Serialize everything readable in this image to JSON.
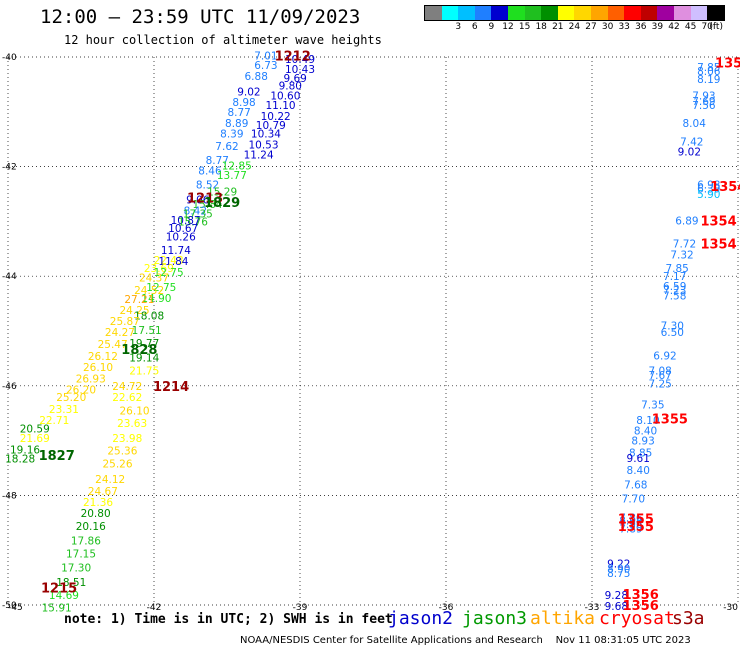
{
  "header": {
    "title": "12:00 — 23:59 UTC 11/09/2023",
    "subtitle": "12 hour collection of altimeter wave heights"
  },
  "colorbar": {
    "unit_label": "(ft)",
    "cells": [
      {
        "color": "#7f7f7f",
        "label": ""
      },
      {
        "color": "#00ffff",
        "label": "3"
      },
      {
        "color": "#00bfff",
        "label": "6"
      },
      {
        "color": "#1f7fff",
        "label": "9"
      },
      {
        "color": "#0000cf",
        "label": "12"
      },
      {
        "color": "#1fdf1f",
        "label": "15"
      },
      {
        "color": "#1fbf1f",
        "label": "18"
      },
      {
        "color": "#008f00",
        "label": "21"
      },
      {
        "color": "#ffff00",
        "label": "24"
      },
      {
        "color": "#ffd700",
        "label": "27"
      },
      {
        "color": "#ffa500",
        "label": "30"
      },
      {
        "color": "#ff5f00",
        "label": "33"
      },
      {
        "color": "#ff0000",
        "label": "36"
      },
      {
        "color": "#bf0000",
        "label": "39"
      },
      {
        "color": "#9f009f",
        "label": "42"
      },
      {
        "color": "#df8fdf",
        "label": "45"
      },
      {
        "color": "#cfbfff",
        "label": "70"
      },
      {
        "color": "#000000",
        "label": ""
      }
    ]
  },
  "footer": {
    "note": "note: 1) Time is in UTC; 2) SWH is in feet",
    "satellites": [
      {
        "name": "jason2",
        "color": "#0000cc"
      },
      {
        "name": "jason3",
        "color": "#009900"
      },
      {
        "name": "altika",
        "color": "#ffa500"
      },
      {
        "name": "cryosat",
        "color": "#ff0000"
      },
      {
        "name": "s3a",
        "color": "#990000"
      }
    ],
    "credit": "NOAA/NESDIS Center for Satellite Applications and Research    Nov 11 08:31:05 UTC 2023"
  },
  "chart_data": {
    "type": "scatter",
    "title": "12:00 — 23:59 UTC 11/09/2023",
    "subtitle": "12 hour collection of altimeter wave heights",
    "xlim": [
      -45,
      -30
    ],
    "ylim": [
      -50,
      -40
    ],
    "x_ticks": [
      {
        "value": -45,
        "label": "-45"
      },
      {
        "value": -42,
        "label": "-42"
      },
      {
        "value": -39,
        "label": "-39"
      },
      {
        "value": -36,
        "label": "-36"
      },
      {
        "value": -33,
        "label": "-33"
      },
      {
        "value": -30,
        "label": "-30"
      }
    ],
    "y_ticks": [
      {
        "value": -40,
        "label": "-40"
      },
      {
        "value": -42,
        "label": "-42"
      },
      {
        "value": -44,
        "label": "-44"
      },
      {
        "value": -46,
        "label": "-46"
      },
      {
        "value": -48,
        "label": "-48"
      },
      {
        "value": -50,
        "label": "-50"
      }
    ],
    "grid": true,
    "time_labels": [
      {
        "text": "1212",
        "x": -39.15,
        "y": -39.97,
        "color": "#990000"
      },
      {
        "text": "1213",
        "x": -40.95,
        "y": -42.56,
        "color": "#990000"
      },
      {
        "text": "1829",
        "x": -40.6,
        "y": -42.65,
        "color": "#006600"
      },
      {
        "text": "1828",
        "x": -42.3,
        "y": -45.33,
        "color": "#006600"
      },
      {
        "text": "1214",
        "x": -41.65,
        "y": -46.0,
        "color": "#990000"
      },
      {
        "text": "1827",
        "x": -44.0,
        "y": -47.26,
        "color": "#006600"
      },
      {
        "text": "1215",
        "x": -43.95,
        "y": -49.68,
        "color": "#990000"
      },
      {
        "text": "1354",
        "x": -30.1,
        "y": -40.1,
        "color": "#ff0000"
      },
      {
        "text": "1354",
        "x": -30.2,
        "y": -42.35,
        "color": "#ff0000"
      },
      {
        "text": "1354",
        "x": -30.4,
        "y": -42.98,
        "color": "#ff0000"
      },
      {
        "text": "1354",
        "x": -30.4,
        "y": -43.4,
        "color": "#ff0000"
      },
      {
        "text": "1355",
        "x": -31.4,
        "y": -46.6,
        "color": "#ff0000"
      },
      {
        "text": "1355",
        "x": -32.1,
        "y": -48.42,
        "color": "#ff0000"
      },
      {
        "text": "1355",
        "x": -32.1,
        "y": -48.56,
        "color": "#ff0000"
      },
      {
        "text": "1356",
        "x": -32.0,
        "y": -49.8,
        "color": "#ff0000"
      },
      {
        "text": "1356",
        "x": -32.0,
        "y": -50.0,
        "color": "#ff0000"
      }
    ],
    "points": [
      {
        "x": -39.7,
        "y": -39.97,
        "v": "7.01"
      },
      {
        "x": -39.0,
        "y": -40.04,
        "v": "10.49"
      },
      {
        "x": -39.7,
        "y": -40.15,
        "v": "6.73"
      },
      {
        "x": -39.0,
        "y": -40.22,
        "v": "10.43"
      },
      {
        "x": -39.9,
        "y": -40.35,
        "v": "6.88"
      },
      {
        "x": -39.1,
        "y": -40.38,
        "v": "9.69"
      },
      {
        "x": -39.2,
        "y": -40.52,
        "v": "9.80"
      },
      {
        "x": -40.05,
        "y": -40.63,
        "v": "9.02"
      },
      {
        "x": -39.3,
        "y": -40.7,
        "v": "10.60"
      },
      {
        "x": -40.15,
        "y": -40.82,
        "v": "8.98"
      },
      {
        "x": -39.4,
        "y": -40.88,
        "v": "11.10"
      },
      {
        "x": -40.25,
        "y": -41.0,
        "v": "8.77"
      },
      {
        "x": -39.5,
        "y": -41.08,
        "v": "10.22"
      },
      {
        "x": -40.3,
        "y": -41.2,
        "v": "8.89"
      },
      {
        "x": -39.6,
        "y": -41.24,
        "v": "10.79"
      },
      {
        "x": -40.4,
        "y": -41.4,
        "v": "8.39"
      },
      {
        "x": -39.7,
        "y": -41.4,
        "v": "10.34"
      },
      {
        "x": -39.75,
        "y": -41.6,
        "v": "10.53"
      },
      {
        "x": -40.5,
        "y": -41.62,
        "v": "7.62"
      },
      {
        "x": -39.85,
        "y": -41.78,
        "v": "11.24"
      },
      {
        "x": -40.7,
        "y": -41.88,
        "v": "8.77"
      },
      {
        "x": -40.3,
        "y": -41.98,
        "v": "12.85"
      },
      {
        "x": -40.85,
        "y": -42.07,
        "v": "8.46"
      },
      {
        "x": -40.4,
        "y": -42.15,
        "v": "13.77"
      },
      {
        "x": -40.9,
        "y": -42.33,
        "v": "8.52"
      },
      {
        "x": -40.6,
        "y": -42.45,
        "v": "15.29"
      },
      {
        "x": -41.1,
        "y": -42.6,
        "v": "9.06"
      },
      {
        "x": -40.9,
        "y": -42.68,
        "v": "15.84"
      },
      {
        "x": -41.15,
        "y": -42.8,
        "v": "8.42"
      },
      {
        "x": -41.1,
        "y": -42.86,
        "v": "17.35"
      },
      {
        "x": -41.35,
        "y": -42.97,
        "v": "10.87"
      },
      {
        "x": -41.2,
        "y": -43.0,
        "v": "15.76"
      },
      {
        "x": -41.4,
        "y": -43.12,
        "v": "10.67"
      },
      {
        "x": -41.45,
        "y": -43.28,
        "v": "10.26"
      },
      {
        "x": -41.55,
        "y": -43.52,
        "v": "11.74"
      },
      {
        "x": -41.7,
        "y": -43.7,
        "v": "22.43"
      },
      {
        "x": -41.6,
        "y": -43.72,
        "v": "11.84"
      },
      {
        "x": -41.9,
        "y": -43.85,
        "v": "23.69"
      },
      {
        "x": -41.7,
        "y": -43.92,
        "v": "12.75"
      },
      {
        "x": -42.0,
        "y": -44.02,
        "v": "24.37"
      },
      {
        "x": -41.85,
        "y": -44.2,
        "v": "12.75"
      },
      {
        "x": -42.1,
        "y": -44.25,
        "v": "24.52"
      },
      {
        "x": -41.95,
        "y": -44.4,
        "v": "14.90"
      },
      {
        "x": -42.3,
        "y": -44.42,
        "v": "27.21"
      },
      {
        "x": -42.4,
        "y": -44.62,
        "v": "24.25"
      },
      {
        "x": -42.1,
        "y": -44.72,
        "v": "18.08"
      },
      {
        "x": -42.6,
        "y": -44.82,
        "v": "25.87"
      },
      {
        "x": -42.15,
        "y": -44.98,
        "v": "17.51"
      },
      {
        "x": -42.7,
        "y": -45.02,
        "v": "24.27"
      },
      {
        "x": -42.2,
        "y": -45.22,
        "v": "19.77"
      },
      {
        "x": -42.85,
        "y": -45.24,
        "v": "25.47"
      },
      {
        "x": -43.05,
        "y": -45.46,
        "v": "26.12"
      },
      {
        "x": -42.2,
        "y": -45.48,
        "v": "19.14"
      },
      {
        "x": -43.15,
        "y": -45.66,
        "v": "26.10"
      },
      {
        "x": -42.2,
        "y": -45.72,
        "v": "21.75"
      },
      {
        "x": -43.3,
        "y": -45.87,
        "v": "26.93"
      },
      {
        "x": -42.55,
        "y": -46.0,
        "v": "24.72"
      },
      {
        "x": -43.5,
        "y": -46.07,
        "v": "26.20"
      },
      {
        "x": -43.7,
        "y": -46.2,
        "v": "25.20"
      },
      {
        "x": -42.55,
        "y": -46.2,
        "v": "22.62"
      },
      {
        "x": -43.85,
        "y": -46.42,
        "v": "23.31"
      },
      {
        "x": -42.4,
        "y": -46.45,
        "v": "26.10"
      },
      {
        "x": -44.05,
        "y": -46.62,
        "v": "22.71"
      },
      {
        "x": -42.45,
        "y": -46.68,
        "v": "23.63"
      },
      {
        "x": -44.45,
        "y": -46.78,
        "v": "20.59"
      },
      {
        "x": -42.55,
        "y": -46.95,
        "v": "23.98"
      },
      {
        "x": -44.45,
        "y": -46.95,
        "v": "21.69"
      },
      {
        "x": -42.65,
        "y": -47.18,
        "v": "25.36"
      },
      {
        "x": -44.65,
        "y": -47.16,
        "v": "19.16"
      },
      {
        "x": -44.75,
        "y": -47.33,
        "v": "18.28"
      },
      {
        "x": -42.75,
        "y": -47.42,
        "v": "25.26"
      },
      {
        "x": -42.9,
        "y": -47.7,
        "v": "24.12"
      },
      {
        "x": -43.05,
        "y": -47.92,
        "v": "24.67"
      },
      {
        "x": -43.15,
        "y": -48.12,
        "v": "21.36"
      },
      {
        "x": -43.2,
        "y": -48.32,
        "v": "20.80"
      },
      {
        "x": -43.3,
        "y": -48.56,
        "v": "20.16"
      },
      {
        "x": -43.4,
        "y": -48.82,
        "v": "17.86"
      },
      {
        "x": -43.5,
        "y": -49.06,
        "v": "17.15"
      },
      {
        "x": -43.6,
        "y": -49.32,
        "v": "17.30"
      },
      {
        "x": -43.7,
        "y": -49.58,
        "v": "18.51"
      },
      {
        "x": -43.85,
        "y": -49.82,
        "v": "14.69"
      },
      {
        "x": -44.0,
        "y": -50.05,
        "v": "15.91"
      },
      {
        "x": -30.6,
        "y": -40.18,
        "v": "7.85"
      },
      {
        "x": -30.6,
        "y": -40.26,
        "v": "8.06"
      },
      {
        "x": -30.6,
        "y": -40.4,
        "v": "8.19"
      },
      {
        "x": -30.7,
        "y": -40.7,
        "v": "7.93"
      },
      {
        "x": -30.7,
        "y": -40.8,
        "v": "7.69"
      },
      {
        "x": -30.7,
        "y": -40.88,
        "v": "7.56"
      },
      {
        "x": -30.9,
        "y": -41.2,
        "v": "8.04"
      },
      {
        "x": -30.95,
        "y": -41.54,
        "v": "7.42"
      },
      {
        "x": -31.0,
        "y": -41.72,
        "v": "9.02"
      },
      {
        "x": -30.6,
        "y": -42.33,
        "v": "6.98"
      },
      {
        "x": -30.6,
        "y": -42.4,
        "v": "6.39"
      },
      {
        "x": -30.6,
        "y": -42.5,
        "v": "5.90"
      },
      {
        "x": -31.05,
        "y": -42.98,
        "v": "6.89"
      },
      {
        "x": -31.1,
        "y": -43.4,
        "v": "7.72"
      },
      {
        "x": -31.15,
        "y": -43.6,
        "v": "7.32"
      },
      {
        "x": -31.25,
        "y": -43.85,
        "v": "7.85"
      },
      {
        "x": -31.3,
        "y": -44.0,
        "v": "7.17"
      },
      {
        "x": -31.3,
        "y": -44.18,
        "v": "6.59"
      },
      {
        "x": -31.3,
        "y": -44.25,
        "v": "7.23"
      },
      {
        "x": -31.3,
        "y": -44.35,
        "v": "7.58"
      },
      {
        "x": -31.35,
        "y": -44.9,
        "v": "7.30"
      },
      {
        "x": -31.35,
        "y": -45.02,
        "v": "6.50"
      },
      {
        "x": -31.5,
        "y": -45.45,
        "v": "6.92"
      },
      {
        "x": -31.6,
        "y": -45.72,
        "v": "7.08"
      },
      {
        "x": -31.6,
        "y": -45.8,
        "v": "7.67"
      },
      {
        "x": -31.6,
        "y": -45.96,
        "v": "7.25"
      },
      {
        "x": -31.75,
        "y": -46.34,
        "v": "7.35"
      },
      {
        "x": -31.85,
        "y": -46.62,
        "v": "8.10"
      },
      {
        "x": -31.9,
        "y": -46.82,
        "v": "8.40"
      },
      {
        "x": -31.95,
        "y": -47.0,
        "v": "8.93"
      },
      {
        "x": -32.0,
        "y": -47.22,
        "v": "8.85"
      },
      {
        "x": -32.05,
        "y": -47.32,
        "v": "9.61"
      },
      {
        "x": -32.05,
        "y": -47.54,
        "v": "8.40"
      },
      {
        "x": -32.1,
        "y": -47.8,
        "v": "7.68"
      },
      {
        "x": -32.15,
        "y": -48.06,
        "v": "7.70"
      },
      {
        "x": -32.2,
        "y": -48.4,
        "v": "7.86"
      },
      {
        "x": -32.2,
        "y": -48.46,
        "v": "8.04"
      },
      {
        "x": -32.2,
        "y": -48.52,
        "v": "7.96"
      },
      {
        "x": -32.2,
        "y": -48.6,
        "v": "7.89"
      },
      {
        "x": -32.45,
        "y": -49.24,
        "v": "9.22"
      },
      {
        "x": -32.45,
        "y": -49.33,
        "v": "8.90"
      },
      {
        "x": -32.45,
        "y": -49.42,
        "v": "8.75"
      },
      {
        "x": -32.5,
        "y": -49.82,
        "v": "9.28"
      },
      {
        "x": -32.5,
        "y": -50.02,
        "v": "9.68"
      }
    ]
  }
}
